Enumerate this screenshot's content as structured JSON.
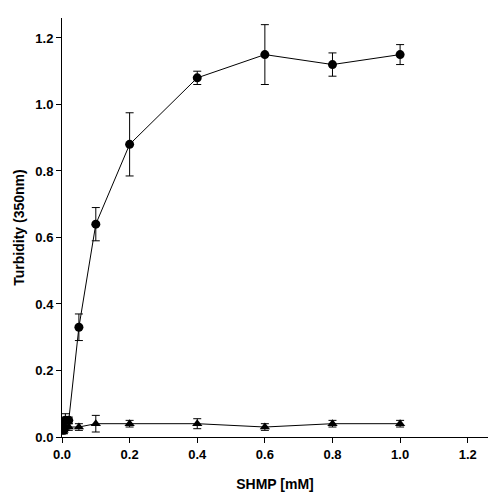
{
  "chart_data": {
    "type": "scatter",
    "x_label": "SHMP [mM]",
    "y_label": "Turbidity (350nm)",
    "xlim": [
      0,
      1.26
    ],
    "ylim": [
      0,
      1.26
    ],
    "xticks": [
      {
        "value": 0,
        "label": "0.0"
      },
      0.2,
      0.4,
      0.6,
      0.8,
      {
        "value": 1,
        "label": "1.0"
      },
      1.2
    ],
    "yticks": [
      {
        "value": 0,
        "label": "0.0"
      },
      0.2,
      0.4,
      0.6,
      0.8,
      {
        "value": 1,
        "label": "1.0"
      },
      1.2
    ],
    "grid": false,
    "series": [
      {
        "color": "#000000",
        "marker": "circle",
        "line_style": "solid",
        "x": [
          0,
          0.005,
          0.01,
          0.02,
          0.05,
          0.1,
          0.2,
          0.4,
          0.6,
          0.8,
          1.0
        ],
        "values": [
          0.04,
          0.02,
          0.05,
          0.05,
          0.33,
          0.64,
          0.88,
          1.08,
          1.15,
          1.12,
          1.15
        ],
        "error": [
          0.02,
          0.01,
          0.02,
          0.01,
          0.04,
          0.05,
          0.095,
          0.02,
          0.09,
          0.035,
          0.03
        ]
      },
      {
        "color": "#000000",
        "marker": "triangle-up",
        "line_style": "solid",
        "x": [
          0,
          0.005,
          0.01,
          0.02,
          0.05,
          0.1,
          0.2,
          0.4,
          0.6,
          0.8,
          1.0
        ],
        "values": [
          0.02,
          0.02,
          0.03,
          0.03,
          0.03,
          0.04,
          0.04,
          0.04,
          0.03,
          0.04,
          0.04
        ],
        "error": [
          0.01,
          0.01,
          0.01,
          0.01,
          0.01,
          0.025,
          0.01,
          0.015,
          0.01,
          0.01,
          0.01
        ]
      }
    ]
  }
}
